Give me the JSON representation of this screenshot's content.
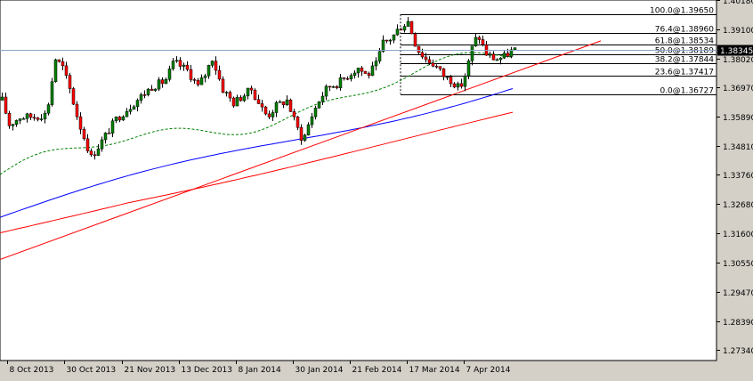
{
  "chart_data": {
    "type": "candlestick",
    "title": "",
    "xlabel": "",
    "ylabel": "",
    "ylim": [
      1.2694,
      1.4018
    ],
    "y_ticks": [
      "1.40180",
      "1.39100",
      "1.38020",
      "1.36970",
      "1.35890",
      "1.34810",
      "1.33760",
      "1.32680",
      "1.31600",
      "1.30550",
      "1.29470",
      "1.28390",
      "1.27340"
    ],
    "x_tick_labels": [
      "8 Oct 2013",
      "30 Oct 2013",
      "21 Nov 2013",
      "13 Dec 2013",
      "8 Jan 2014",
      "30 Jan 2014",
      "21 Feb 2014",
      "17 Mar 2014",
      "7 Apr 2014"
    ],
    "current_price": {
      "label": "1.38345",
      "value": 1.38345
    },
    "fibonacci_levels": [
      {
        "label": "100.0@1.39650",
        "value": 1.3965
      },
      {
        "label": "76.4@1.38960",
        "value": 1.3896
      },
      {
        "label": "61.8@1.38534",
        "value": 1.38534
      },
      {
        "label": "50.0@1.38189",
        "value": 1.38189
      },
      {
        "label": "38.2@1.37844",
        "value": 1.37844
      },
      {
        "label": "23.6@1.37417",
        "value": 1.37417
      },
      {
        "label": "0.0@1.36727",
        "value": 1.36727
      }
    ],
    "ohlc": [],
    "moving_averages": [
      {
        "style": "dashed",
        "color": "#008000",
        "start": 1.3377,
        "end": 1.3808
      },
      {
        "style": "solid",
        "color": "#0000ff",
        "start": 1.322,
        "end": 1.3716
      },
      {
        "style": "solid",
        "color": "#ff0000",
        "start": 1.3183,
        "end": 1.3596
      }
    ],
    "trendline": {
      "color": "#ff0000",
      "start": 1.3065,
      "end": 1.3868
    }
  },
  "colors": {
    "plot_bg": "#ffffff",
    "frame_bg": "#d4d0c8",
    "bull_candle": "#008000",
    "bear_candle": "#ff0000",
    "current_price_line": "#8aa4c8",
    "price_label_bg": "#000000"
  }
}
